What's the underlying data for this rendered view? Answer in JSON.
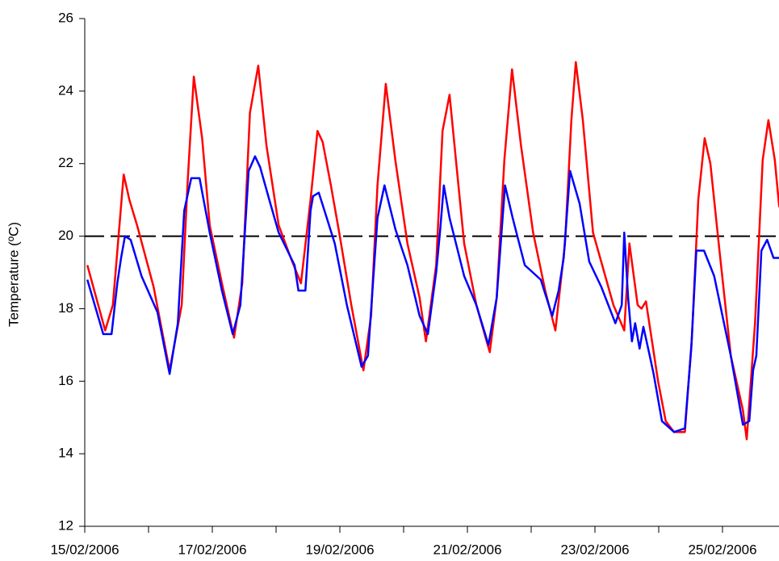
{
  "chart_data": {
    "type": "line",
    "ylabel": "Temperature (ºC)",
    "xlim": [
      0,
      10.89
    ],
    "ylim": [
      12,
      26
    ],
    "xticks": [
      {
        "value": 0,
        "label": "15/02/2006"
      },
      {
        "value": 2,
        "label": "17/02/2006"
      },
      {
        "value": 4,
        "label": "19/02/2006"
      },
      {
        "value": 6,
        "label": "21/02/2006"
      },
      {
        "value": 8,
        "label": "23/02/2006"
      },
      {
        "value": 10,
        "label": "25/02/2006"
      }
    ],
    "xminorticks": [
      1,
      3,
      5,
      7,
      9
    ],
    "yticks": [
      12,
      14,
      16,
      18,
      20,
      22,
      24,
      26
    ],
    "hline": {
      "value": 20,
      "color": "#000000",
      "dashed": true
    },
    "series": [
      {
        "color": "#ff0000",
        "x": [
          0.04,
          0.32,
          0.44,
          0.61,
          0.7,
          0.82,
          1.08,
          1.33,
          1.52,
          1.61,
          1.71,
          1.84,
          1.96,
          2.15,
          2.34,
          2.47,
          2.59,
          2.72,
          2.85,
          3.04,
          3.23,
          3.39,
          3.54,
          3.65,
          3.73,
          3.86,
          3.99,
          4.18,
          4.37,
          4.49,
          4.59,
          4.72,
          4.87,
          5.06,
          5.25,
          5.35,
          5.51,
          5.61,
          5.72,
          5.82,
          5.95,
          6.14,
          6.35,
          6.46,
          6.58,
          6.7,
          6.84,
          7.03,
          7.22,
          7.38,
          7.53,
          7.63,
          7.7,
          7.81,
          7.97,
          8.29,
          8.46,
          8.54,
          8.67,
          8.73,
          8.8,
          8.99,
          9.11,
          9.24,
          9.41,
          9.52,
          9.62,
          9.72,
          9.81,
          9.94,
          10.13,
          10.32,
          10.38,
          10.51,
          10.63,
          10.72,
          10.82,
          10.89
        ],
        "values": [
          19.2,
          17.4,
          18.1,
          21.7,
          21.0,
          20.3,
          18.6,
          16.3,
          18.1,
          21.4,
          24.4,
          22.7,
          20.3,
          18.7,
          17.2,
          18.7,
          23.4,
          24.7,
          22.5,
          20.3,
          19.4,
          18.7,
          21.0,
          22.9,
          22.6,
          21.4,
          20.1,
          18.1,
          16.3,
          17.8,
          21.4,
          24.2,
          22.1,
          19.8,
          18.3,
          17.1,
          19.2,
          22.9,
          23.9,
          22.1,
          19.8,
          18.1,
          16.8,
          18.3,
          22.1,
          24.6,
          22.5,
          20.1,
          18.5,
          17.4,
          19.8,
          23.2,
          24.8,
          23.2,
          20.1,
          18.1,
          17.4,
          19.8,
          18.1,
          18.0,
          18.2,
          16.0,
          14.9,
          14.6,
          14.6,
          17.2,
          21.0,
          22.7,
          22.0,
          19.8,
          16.7,
          15.2,
          14.4,
          17.6,
          22.1,
          23.2,
          22.1,
          20.8
        ]
      },
      {
        "color": "#0000ff",
        "x": [
          0.04,
          0.29,
          0.42,
          0.51,
          0.57,
          0.63,
          0.72,
          0.89,
          1.14,
          1.33,
          1.46,
          1.56,
          1.67,
          1.8,
          1.96,
          2.15,
          2.32,
          2.44,
          2.57,
          2.67,
          2.75,
          2.91,
          3.04,
          3.29,
          3.35,
          3.46,
          3.54,
          3.58,
          3.67,
          3.76,
          3.92,
          4.11,
          4.34,
          4.44,
          4.59,
          4.7,
          4.87,
          5.06,
          5.25,
          5.38,
          5.51,
          5.57,
          5.63,
          5.72,
          5.95,
          6.14,
          6.33,
          6.46,
          6.59,
          6.71,
          6.9,
          7.15,
          7.33,
          7.43,
          7.51,
          7.61,
          7.76,
          7.91,
          8.1,
          8.32,
          8.42,
          8.46,
          8.52,
          8.58,
          8.63,
          8.7,
          8.76,
          8.86,
          8.92,
          9.05,
          9.24,
          9.41,
          9.51,
          9.59,
          9.71,
          9.87,
          10.13,
          10.32,
          10.42,
          10.48,
          10.53,
          10.61,
          10.7,
          10.8,
          10.89
        ],
        "values": [
          18.8,
          17.3,
          17.3,
          18.7,
          19.4,
          20.0,
          19.9,
          18.9,
          17.9,
          16.2,
          17.6,
          20.7,
          21.6,
          21.6,
          20.1,
          18.5,
          17.3,
          18.1,
          21.8,
          22.2,
          21.9,
          20.9,
          20.1,
          19.2,
          18.5,
          18.5,
          20.7,
          21.1,
          21.2,
          20.7,
          19.8,
          18.1,
          16.4,
          16.7,
          20.5,
          21.4,
          20.2,
          19.2,
          17.8,
          17.3,
          19.0,
          20.1,
          21.4,
          20.5,
          18.9,
          18.1,
          17.0,
          18.3,
          21.4,
          20.5,
          19.2,
          18.8,
          17.8,
          18.5,
          19.4,
          21.8,
          20.9,
          19.3,
          18.6,
          17.6,
          18.1,
          20.1,
          18.3,
          17.1,
          17.6,
          16.9,
          17.5,
          16.7,
          16.2,
          14.9,
          14.6,
          14.7,
          16.9,
          19.6,
          19.6,
          18.9,
          16.7,
          14.8,
          14.9,
          16.3,
          16.7,
          19.6,
          19.9,
          19.4,
          19.4
        ]
      }
    ]
  }
}
